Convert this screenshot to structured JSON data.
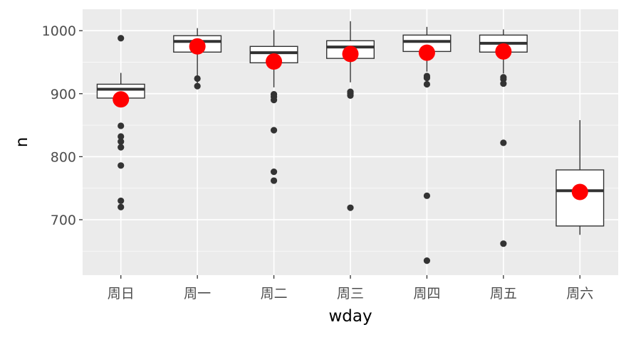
{
  "chart_data": {
    "type": "boxplot",
    "xlabel": "wday",
    "ylabel": "n",
    "ylim": [
      612,
      1034
    ],
    "y_ticks": [
      700,
      800,
      900,
      1000
    ],
    "categories": [
      "周日",
      "周一",
      "周二",
      "周三",
      "周四",
      "周五",
      "周六"
    ],
    "boxes": [
      {
        "category": "周日",
        "whisker_low": 893,
        "q1": 893,
        "median": 907,
        "q3": 915,
        "whisker_high": 933,
        "mean": 891,
        "outliers": [
          988,
          849,
          832,
          824,
          815,
          786,
          730,
          720
        ]
      },
      {
        "category": "周一",
        "whisker_low": 915,
        "q1": 966,
        "median": 983,
        "q3": 992,
        "whisker_high": 1004,
        "mean": 975,
        "outliers": [
          924,
          912
        ]
      },
      {
        "category": "周二",
        "whisker_low": 910,
        "q1": 949,
        "median": 965,
        "q3": 975,
        "whisker_high": 1001,
        "mean": 951,
        "outliers": [
          899,
          895,
          890,
          842,
          776,
          762
        ]
      },
      {
        "category": "周三",
        "whisker_low": 918,
        "q1": 956,
        "median": 974,
        "q3": 984,
        "whisker_high": 1015,
        "mean": 963,
        "outliers": [
          903,
          900,
          897,
          719
        ]
      },
      {
        "category": "周四",
        "whisker_low": 935,
        "q1": 967,
        "median": 983,
        "q3": 993,
        "whisker_high": 1006,
        "mean": 965,
        "outliers": [
          928,
          925,
          915,
          738,
          635
        ]
      },
      {
        "category": "周五",
        "whisker_low": 932,
        "q1": 966,
        "median": 980,
        "q3": 993,
        "whisker_high": 1002,
        "mean": 967,
        "outliers": [
          926,
          923,
          916,
          822,
          662
        ]
      },
      {
        "category": "周六",
        "whisker_low": 676,
        "q1": 690,
        "median": 746,
        "q3": 779,
        "whisker_high": 858,
        "mean": 744,
        "outliers": []
      }
    ],
    "colors": {
      "panel_background": "#ebebeb",
      "grid_major": "#ffffff",
      "box_fill": "#ffffff",
      "box_line": "#333333",
      "outlier": "#333333",
      "mean_point": "#ff0000"
    },
    "grid": true
  }
}
